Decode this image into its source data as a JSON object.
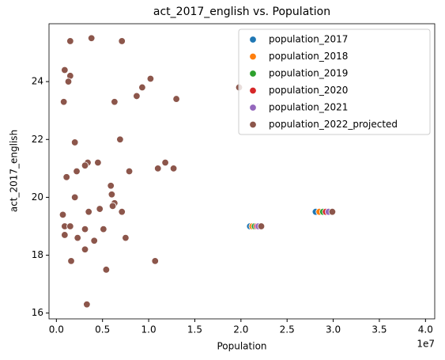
{
  "chart_data": {
    "type": "scatter",
    "title": "act_2017_english vs. Population",
    "x_label": "Population",
    "y_label": "act_2017_english",
    "x_offset_label": "1e7",
    "xlim": [
      -800000,
      41000000
    ],
    "ylim": [
      15.8,
      26.0
    ],
    "xticks": [
      {
        "value": 0,
        "label": "0.0"
      },
      {
        "value": 5000000,
        "label": "0.5"
      },
      {
        "value": 10000000,
        "label": "1.0"
      },
      {
        "value": 15000000,
        "label": "1.5"
      },
      {
        "value": 20000000,
        "label": "2.0"
      },
      {
        "value": 25000000,
        "label": "2.5"
      },
      {
        "value": 30000000,
        "label": "3.0"
      },
      {
        "value": 35000000,
        "label": "3.5"
      },
      {
        "value": 40000000,
        "label": "4.0"
      }
    ],
    "yticks": [
      16,
      18,
      20,
      22,
      24
    ],
    "grid": false,
    "legend": "upper right",
    "y": [
      25.4,
      25.5,
      25.4,
      24.4,
      24.2,
      24.0,
      23.3,
      24.1,
      23.8,
      23.5,
      23.3,
      23.4,
      23.8,
      21.9,
      22.0,
      21.2,
      21.2,
      21.1,
      21.2,
      20.9,
      20.7,
      20.9,
      21.0,
      21.0,
      20.4,
      20.1,
      20.0,
      19.8,
      19.7,
      19.4,
      19.5,
      19.6,
      19.5,
      19.0,
      19.0,
      18.9,
      18.9,
      18.7,
      18.6,
      18.5,
      18.6,
      18.2,
      17.8,
      17.5,
      17.8,
      16.3,
      19.0,
      19.5
    ],
    "series": [
      {
        "name": "population_2017",
        "color": "#1f77b4",
        "x": [
          1500000,
          3800000,
          7100000,
          900000,
          1500000,
          1300000,
          800000,
          10200000,
          9300000,
          8700000,
          6300000,
          13000000,
          19800000,
          2000000,
          6900000,
          4500000,
          3400000,
          3100000,
          11800000,
          2200000,
          1100000,
          7900000,
          11000000,
          12700000,
          5900000,
          6000000,
          2000000,
          6300000,
          6100000,
          700000,
          3500000,
          4700000,
          7100000,
          900000,
          1500000,
          5100000,
          3100000,
          900000,
          2300000,
          4100000,
          7500000,
          3100000,
          1600000,
          5400000,
          10700000,
          3300000,
          20980000,
          28100000
        ]
      },
      {
        "name": "population_2018",
        "color": "#ff7f0e",
        "x": [
          1500000,
          3800000,
          7100000,
          900000,
          1500000,
          1300000,
          800000,
          10200000,
          9300000,
          8700000,
          6300000,
          13000000,
          19800000,
          2000000,
          6900000,
          4500000,
          3400000,
          3100000,
          11800000,
          2200000,
          1100000,
          7900000,
          11000000,
          12700000,
          5900000,
          6000000,
          2000000,
          6300000,
          6100000,
          700000,
          3500000,
          4700000,
          7100000,
          900000,
          1500000,
          5100000,
          3100000,
          900000,
          2300000,
          4100000,
          7500000,
          3100000,
          1600000,
          5400000,
          10700000,
          3300000,
          21240000,
          28500000
        ]
      },
      {
        "name": "population_2019",
        "color": "#2ca02c",
        "x": [
          1500000,
          3800000,
          7100000,
          900000,
          1500000,
          1300000,
          800000,
          10200000,
          9300000,
          8700000,
          6300000,
          13000000,
          19800000,
          2000000,
          6900000,
          4500000,
          3400000,
          3100000,
          11800000,
          2200000,
          1100000,
          7900000,
          11000000,
          12700000,
          5900000,
          6000000,
          2000000,
          6300000,
          6100000,
          700000,
          3500000,
          4700000,
          7100000,
          900000,
          1500000,
          5100000,
          3100000,
          900000,
          2300000,
          4100000,
          7500000,
          3100000,
          1600000,
          5400000,
          10700000,
          3300000,
          21490000,
          28900000
        ]
      },
      {
        "name": "population_2020",
        "color": "#d62728",
        "x": [
          1500000,
          3800000,
          7100000,
          900000,
          1500000,
          1300000,
          800000,
          10200000,
          9300000,
          8700000,
          6300000,
          13000000,
          19800000,
          2000000,
          6900000,
          4500000,
          3400000,
          3100000,
          11800000,
          2200000,
          1100000,
          7900000,
          11000000,
          12700000,
          5900000,
          6000000,
          2000000,
          6300000,
          6100000,
          700000,
          3500000,
          4700000,
          7100000,
          900000,
          1500000,
          5100000,
          3100000,
          900000,
          2300000,
          4100000,
          7500000,
          3100000,
          1600000,
          5400000,
          10700000,
          3300000,
          21730000,
          29200000
        ]
      },
      {
        "name": "population_2021",
        "color": "#9467bd",
        "x": [
          1500000,
          3800000,
          7100000,
          900000,
          1500000,
          1300000,
          800000,
          10200000,
          9300000,
          8700000,
          6300000,
          13000000,
          19800000,
          2000000,
          6900000,
          4500000,
          3400000,
          3100000,
          11800000,
          2200000,
          1100000,
          7900000,
          11000000,
          12700000,
          5900000,
          6000000,
          2000000,
          6300000,
          6100000,
          700000,
          3500000,
          4700000,
          7100000,
          900000,
          1500000,
          5100000,
          3100000,
          900000,
          2300000,
          4100000,
          7500000,
          3100000,
          1600000,
          5400000,
          10700000,
          3300000,
          21900000,
          29500000
        ]
      },
      {
        "name": "population_2022_projected",
        "color": "#8c564b",
        "x": [
          1500000,
          3800000,
          7100000,
          900000,
          1500000,
          1300000,
          800000,
          10200000,
          9300000,
          8700000,
          6300000,
          13000000,
          19800000,
          2000000,
          6900000,
          4500000,
          3400000,
          3100000,
          11800000,
          2200000,
          1100000,
          7900000,
          11000000,
          12700000,
          5900000,
          6000000,
          2000000,
          6300000,
          6100000,
          700000,
          3500000,
          4700000,
          7100000,
          900000,
          1500000,
          5100000,
          3100000,
          900000,
          2300000,
          4100000,
          7500000,
          3100000,
          1600000,
          5400000,
          10700000,
          3300000,
          22200000,
          29900000
        ]
      }
    ]
  }
}
